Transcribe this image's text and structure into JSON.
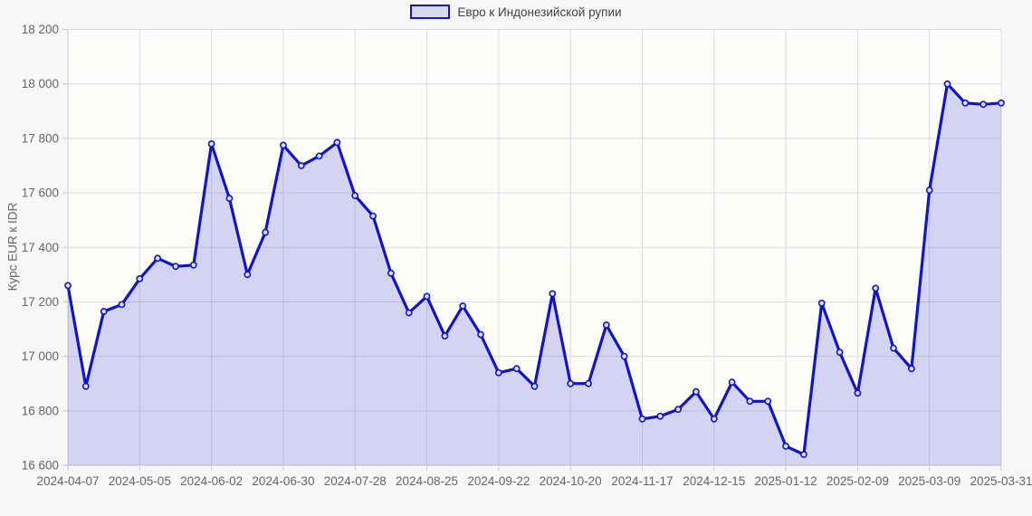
{
  "legend": {
    "label": "Евро к Индонезийской рупии"
  },
  "axes": {
    "y_title": "Курс EUR к IDR"
  },
  "colors": {
    "page_bg": "#f7f7f7",
    "plot_bg": "#fdfdfa",
    "line": "#1313c9",
    "area_fill": "rgba(70,70,215,0.22)",
    "marker_fill": "#dcdcf4",
    "grid": "#dcdcdc",
    "axis_border": "#c9c9c9",
    "tick_text": "#666666",
    "legend_text": "#404040",
    "legend_swatch_fill": "#d8d8f0"
  },
  "chart_data": {
    "type": "area",
    "title": "Евро к Индонезийской рупии",
    "xlabel": "",
    "ylabel": "Курс EUR к IDR",
    "ylim": [
      16600,
      18200
    ],
    "y_tick_step": 200,
    "x_tick_interval": 4,
    "grid": true,
    "legend_position": "top-center",
    "x": [
      "2024-04-07",
      "2024-04-14",
      "2024-04-21",
      "2024-04-28",
      "2024-05-05",
      "2024-05-12",
      "2024-05-19",
      "2024-05-26",
      "2024-06-02",
      "2024-06-09",
      "2024-06-16",
      "2024-06-23",
      "2024-06-30",
      "2024-07-07",
      "2024-07-14",
      "2024-07-21",
      "2024-07-28",
      "2024-08-04",
      "2024-08-11",
      "2024-08-18",
      "2024-08-25",
      "2024-09-01",
      "2024-09-08",
      "2024-09-15",
      "2024-09-22",
      "2024-09-29",
      "2024-10-06",
      "2024-10-13",
      "2024-10-20",
      "2024-10-27",
      "2024-11-03",
      "2024-11-10",
      "2024-11-17",
      "2024-11-24",
      "2024-12-01",
      "2024-12-08",
      "2024-12-15",
      "2024-12-22",
      "2024-12-29",
      "2025-01-05",
      "2025-01-12",
      "2025-01-19",
      "2025-01-26",
      "2025-02-02",
      "2025-02-09",
      "2025-02-16",
      "2025-02-23",
      "2025-03-02",
      "2025-03-09",
      "2025-03-16",
      "2025-03-23",
      "2025-03-30",
      "2025-03-31"
    ],
    "values": [
      17260,
      16890,
      17165,
      17190,
      17285,
      17360,
      17330,
      17335,
      17780,
      17580,
      17300,
      17455,
      17775,
      17700,
      17735,
      17785,
      17590,
      17515,
      17305,
      17160,
      17220,
      17075,
      17185,
      17080,
      16940,
      16955,
      16890,
      17230,
      16900,
      16900,
      17115,
      17000,
      16770,
      16780,
      16805,
      16870,
      16770,
      16905,
      16835,
      16835,
      16670,
      16640,
      17195,
      17015,
      16865,
      17250,
      17030,
      16955,
      17610,
      18000,
      17930,
      17925,
      17930
    ],
    "series_name": "Евро к Индонезийской рупии"
  }
}
